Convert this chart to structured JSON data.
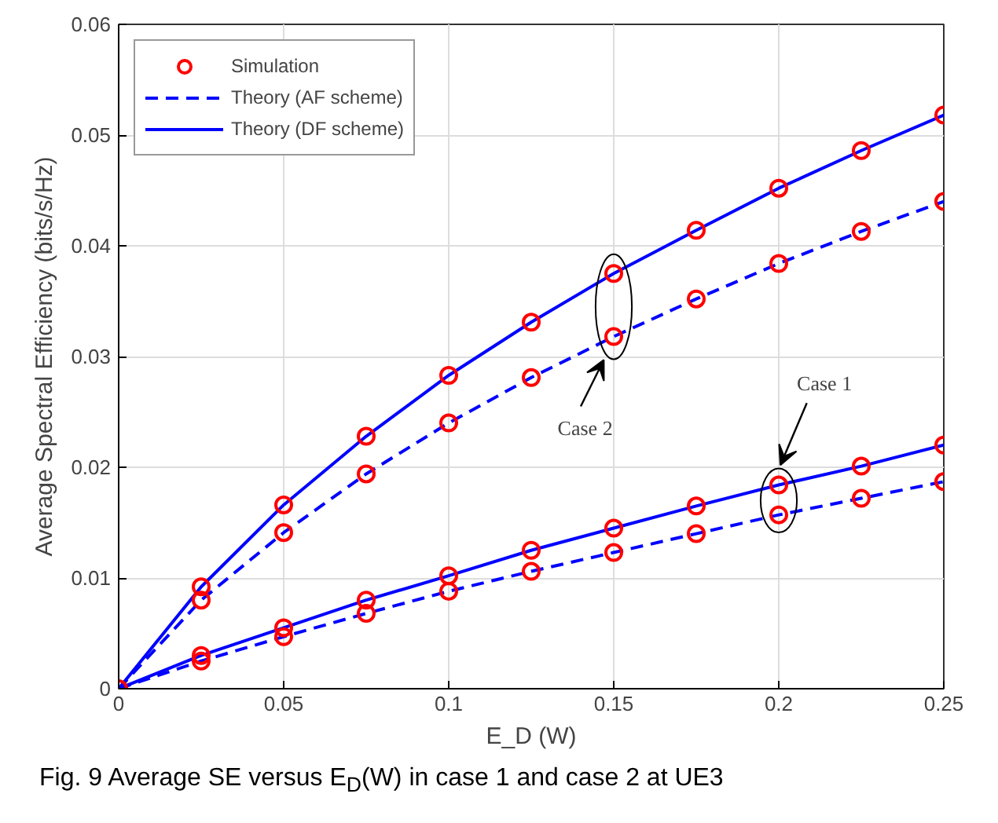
{
  "chart_data": {
    "type": "line",
    "xlabel": "E_D (W)",
    "ylabel": "Average Spectral Efficiency (bits/s/Hz)",
    "x": [
      0,
      0.025,
      0.05,
      0.075,
      0.1,
      0.125,
      0.15,
      0.175,
      0.2,
      0.225,
      0.25
    ],
    "series": [
      {
        "name": "Theory (AF scheme)",
        "color": "#0000ff",
        "line_style": "dashed",
        "marker": "none",
        "values": [
          0,
          0.008,
          0.0141,
          0.0194,
          0.024,
          0.0281,
          0.0318,
          0.0352,
          0.0384,
          0.0413,
          0.044
        ]
      },
      {
        "color": "#0000ff",
        "line_style": "dashed",
        "marker": "none",
        "values": [
          0,
          0.0025,
          0.0047,
          0.0068,
          0.0088,
          0.0106,
          0.0123,
          0.014,
          0.0157,
          0.0172,
          0.0187
        ]
      },
      {
        "name": "Theory (DF scheme)",
        "color": "#0000ff",
        "line_style": "solid",
        "marker": "none",
        "values": [
          0,
          0.0092,
          0.0166,
          0.0228,
          0.0283,
          0.0331,
          0.0375,
          0.0414,
          0.0452,
          0.0486,
          0.0518
        ]
      },
      {
        "color": "#0000ff",
        "line_style": "solid",
        "marker": "none",
        "values": [
          0,
          0.003,
          0.0055,
          0.008,
          0.0102,
          0.0125,
          0.0145,
          0.0165,
          0.0184,
          0.0201,
          0.022
        ]
      },
      {
        "type": "scatter",
        "name": "Simulation",
        "color": "#ff0000",
        "marker": "circle",
        "values": [
          0,
          0.008,
          0.0141,
          0.0194,
          0.024,
          0.0281,
          0.0318,
          0.0352,
          0.0384,
          0.0413,
          0.044
        ]
      },
      {
        "type": "scatter",
        "color": "#ff0000",
        "marker": "circle",
        "values": [
          null,
          0.0025,
          0.0047,
          0.0068,
          0.0088,
          0.0106,
          0.0123,
          0.014,
          0.0157,
          0.0172,
          0.0187
        ]
      },
      {
        "type": "scatter",
        "color": "#ff0000",
        "marker": "circle",
        "values": [
          null,
          0.0092,
          0.0166,
          0.0228,
          0.0283,
          0.0331,
          0.0375,
          0.0414,
          0.0452,
          0.0486,
          0.0518
        ]
      },
      {
        "type": "scatter",
        "color": "#ff0000",
        "marker": "circle",
        "values": [
          null,
          0.003,
          0.0055,
          0.008,
          0.0102,
          0.0125,
          0.0145,
          0.0165,
          0.0184,
          0.0201,
          0.022
        ]
      }
    ],
    "xlim": [
      0,
      0.25
    ],
    "xticks": [
      0,
      0.05,
      0.1,
      0.15,
      0.2,
      0.25
    ],
    "ylim": [
      0,
      0.06
    ],
    "yticks": [
      0,
      0.01,
      0.02,
      0.03,
      0.04,
      0.05,
      0.06
    ],
    "grid": true,
    "legend": "top left",
    "annotations": [
      "Case 2",
      "Case 1",
      "Fig. 9 Average SE versus E$_{D}$(W) in case 1 and case 2 at UE3"
    ]
  }
}
